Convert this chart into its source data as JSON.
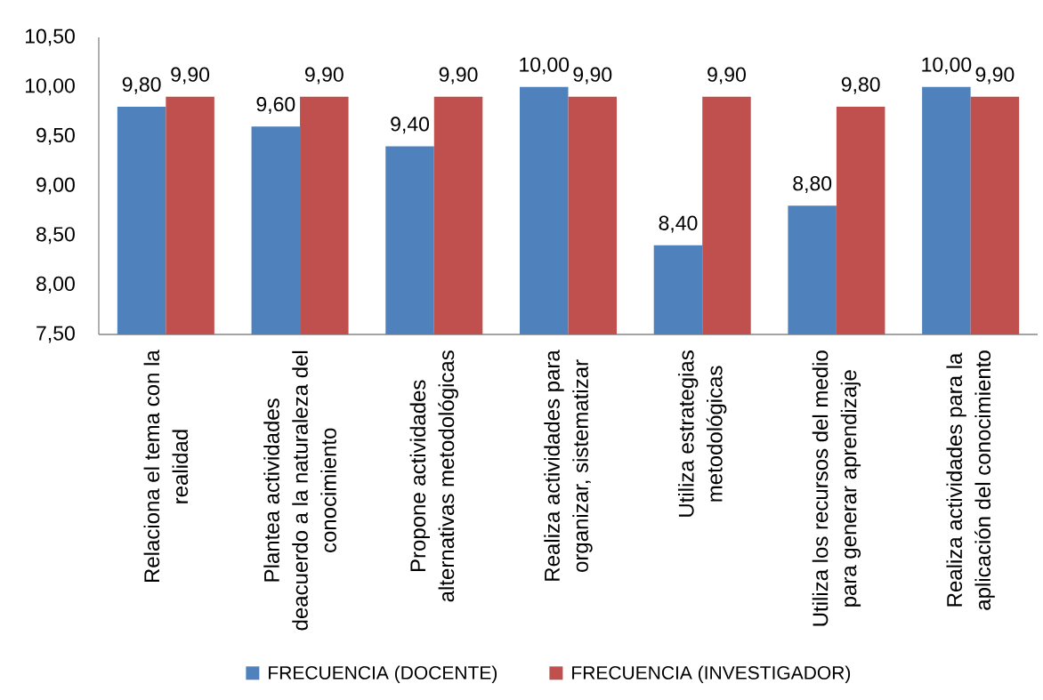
{
  "chart_data": {
    "type": "bar",
    "categories": [
      "Relaciona el tema con la realidad",
      "Plantea actividades deacuerdo a la naturaleza del conocimiento",
      "Propone actividades alternativas metodológicas",
      "Realiza actividades para organizar, sistematizar",
      "Utiliza estrategias metodológicas",
      "Utiliza los recursos del medio para generar aprendizaje",
      "Realiza actividades para la aplicación del conocimiento"
    ],
    "series": [
      {
        "name": "FRECUENCIA (DOCENTE)",
        "color": "#4f81bd",
        "values": [
          9.8,
          9.6,
          9.4,
          10.0,
          8.4,
          8.8,
          10.0
        ],
        "value_labels": [
          "9,80",
          "9,60",
          "9,40",
          "10,00",
          "8,40",
          "8,80",
          "10,00"
        ]
      },
      {
        "name": "FRECUENCIA (INVESTIGADOR)",
        "color": "#c0504d",
        "values": [
          9.9,
          9.9,
          9.9,
          9.9,
          9.9,
          9.8,
          9.9
        ],
        "value_labels": [
          "9,90",
          "9,90",
          "9,90",
          "9,90",
          "9,90",
          "9,80",
          "9,90"
        ]
      }
    ],
    "ylim": [
      7.5,
      10.5
    ],
    "yticks": [
      {
        "value": 7.5,
        "label": "7,50"
      },
      {
        "value": 8.0,
        "label": "8,00"
      },
      {
        "value": 8.5,
        "label": "8,50"
      },
      {
        "value": 9.0,
        "label": "9,00"
      },
      {
        "value": 9.5,
        "label": "9,50"
      },
      {
        "value": 10.0,
        "label": "10,00"
      },
      {
        "value": 10.5,
        "label": "10,50"
      }
    ],
    "legend": "bottom"
  }
}
